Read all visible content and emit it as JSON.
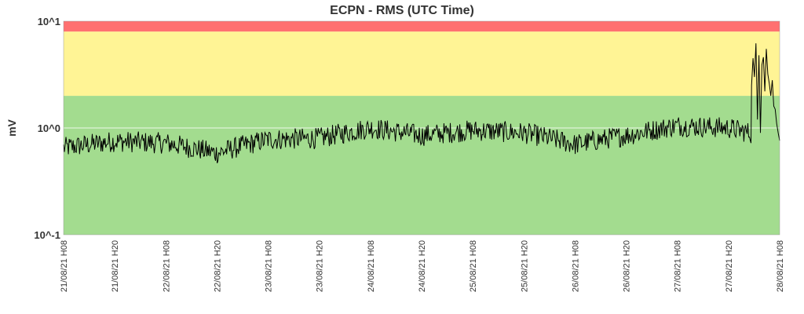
{
  "chart_data": {
    "type": "line",
    "title": "ECPN - RMS (UTC Time)",
    "ylabel": "mV",
    "xlabel": "",
    "yscale": "log",
    "ylim": [
      0.1,
      10
    ],
    "yticks": [
      {
        "value": 10,
        "label": "10^1"
      },
      {
        "value": 1,
        "label": "10^0"
      },
      {
        "value": 0.1,
        "label": "10^-1"
      }
    ],
    "xticks": [
      "21/08/21 H08",
      "21/08/21 H20",
      "22/08/21 H08",
      "22/08/21 H20",
      "23/08/21 H08",
      "23/08/21 H20",
      "24/08/21 H08",
      "24/08/21 H20",
      "25/08/21 H08",
      "25/08/21 H20",
      "26/08/21 H08",
      "26/08/21 H20",
      "27/08/21 H08",
      "27/08/21 H20",
      "28/08/21 H08"
    ],
    "bands": [
      {
        "from": 0.1,
        "to": 2.0,
        "color": "#a3dc8f"
      },
      {
        "from": 2.0,
        "to": 8.0,
        "color": "#fff495"
      },
      {
        "from": 8.0,
        "to": 10,
        "color": "#ff7070"
      }
    ],
    "gridlines_y": [
      1
    ],
    "grid": true,
    "legend": "none",
    "line_color": "#000000",
    "series": [
      {
        "x": [
          "21/08/21 H08",
          "21/08/21 H20",
          "22/08/21 H08",
          "22/08/21 H20",
          "23/08/21 H08",
          "23/08/21 H20",
          "24/08/21 H08",
          "24/08/21 H20",
          "25/08/21 H08",
          "25/08/21 H20",
          "26/08/21 H08",
          "26/08/21 H20",
          "27/08/21 H08",
          "27/08/21 H20",
          "28/08/21 H08"
        ],
        "values": [
          0.65,
          0.75,
          0.72,
          0.58,
          0.78,
          0.8,
          1.0,
          0.85,
          0.95,
          0.9,
          0.7,
          0.85,
          1.05,
          1.0,
          0.76
        ]
      }
    ]
  }
}
